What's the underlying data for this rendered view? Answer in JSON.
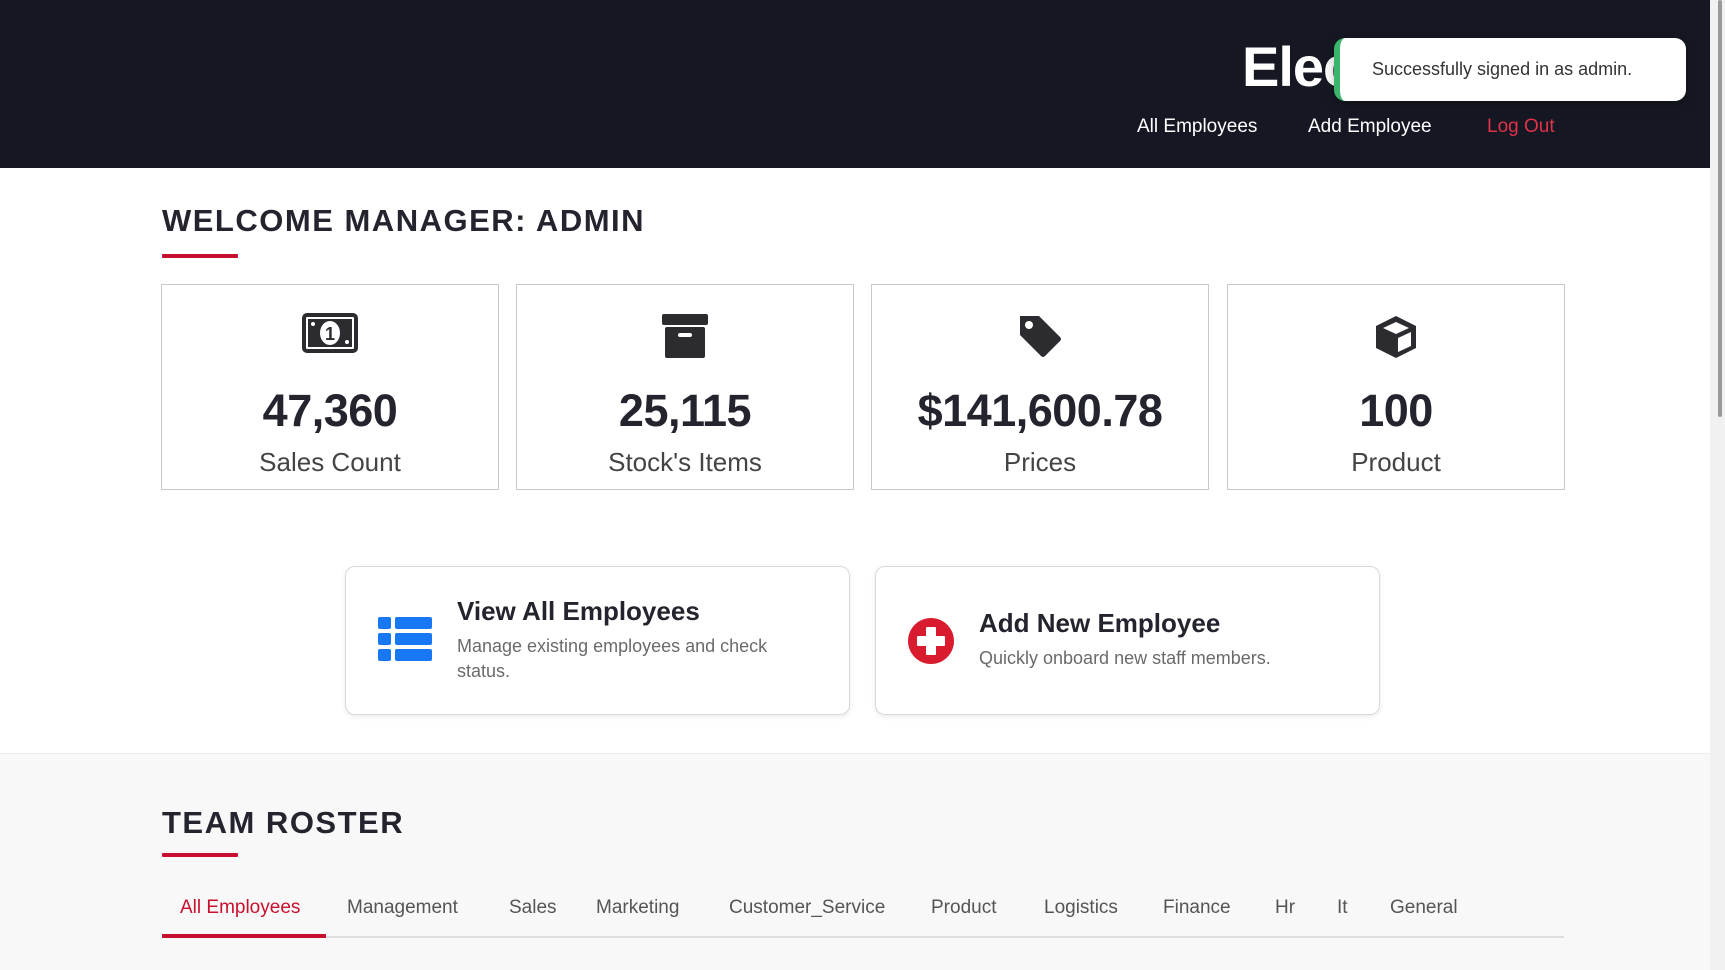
{
  "header": {
    "brand": "Electro",
    "nav": [
      {
        "label": "All Employees"
      },
      {
        "label": "Add Employee"
      },
      {
        "label": "Log Out"
      }
    ]
  },
  "toast": {
    "message": "Successfully signed in as admin.",
    "accent_color": "#3bb56b"
  },
  "welcome": {
    "title": "WELCOME MANAGER: ADMIN"
  },
  "stats": [
    {
      "icon": "money-bill-icon",
      "value": "47,360",
      "label": "Sales Count"
    },
    {
      "icon": "archive-box-icon",
      "value": "25,115",
      "label": "Stock's Items"
    },
    {
      "icon": "price-tag-icon",
      "value": "$141,600.78",
      "label": "Prices"
    },
    {
      "icon": "cube-icon",
      "value": "100",
      "label": "Product"
    }
  ],
  "actions": [
    {
      "icon": "list-icon",
      "title": "View All Employees",
      "description": "Manage existing employees and check status."
    },
    {
      "icon": "plus-circle-icon",
      "title": "Add New Employee",
      "description": "Quickly onboard new staff members."
    }
  ],
  "roster": {
    "title": "TEAM ROSTER",
    "tabs": [
      {
        "label": "All Employees"
      },
      {
        "label": "Management"
      },
      {
        "label": "Sales"
      },
      {
        "label": "Marketing"
      },
      {
        "label": "Customer_Service"
      },
      {
        "label": "Product"
      },
      {
        "label": "Logistics"
      },
      {
        "label": "Finance"
      },
      {
        "label": "Hr"
      },
      {
        "label": "It"
      },
      {
        "label": "General"
      }
    ],
    "active_tab": "All Employees"
  },
  "colors": {
    "header_bg": "#151722",
    "accent_red": "#c8102e",
    "link_blue": "#1877f2"
  }
}
